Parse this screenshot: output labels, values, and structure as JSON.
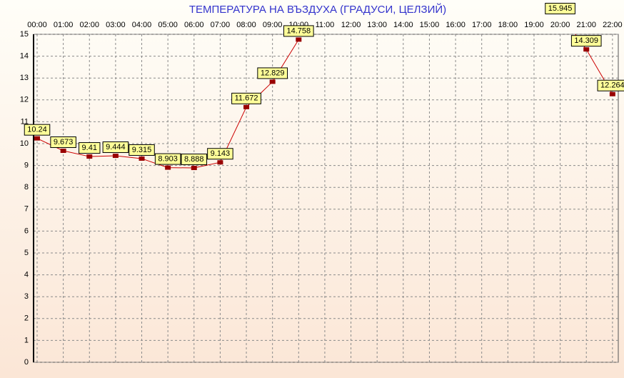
{
  "chart_data": {
    "type": "line",
    "title": "ТЕМПЕРАТУРА НА ВЪЗДУХА  (ГРАДУСИ, ЦЕЛЗИЙ)",
    "categories": [
      "00:00",
      "01:00",
      "02:00",
      "03:00",
      "04:00",
      "05:00",
      "06:00",
      "07:00",
      "08:00",
      "09:00",
      "10:00",
      "11:00",
      "12:00",
      "13:00",
      "14:00",
      "15:00",
      "16:00",
      "17:00",
      "18:00",
      "19:00",
      "20:00",
      "21:00",
      "22:00"
    ],
    "values": [
      10.24,
      9.673,
      9.41,
      9.444,
      9.315,
      8.903,
      8.888,
      9.143,
      11.672,
      12.829,
      14.758,
      null,
      null,
      null,
      null,
      null,
      null,
      null,
      null,
      null,
      15.945,
      14.309,
      12.264
    ],
    "color": "#cc0000",
    "marker_color": "#990000",
    "ylim": [
      0,
      15
    ],
    "yticks": [
      0,
      1,
      2,
      3,
      4,
      5,
      6,
      7,
      8,
      9,
      10,
      11,
      12,
      13,
      14,
      15
    ],
    "grid": true
  }
}
